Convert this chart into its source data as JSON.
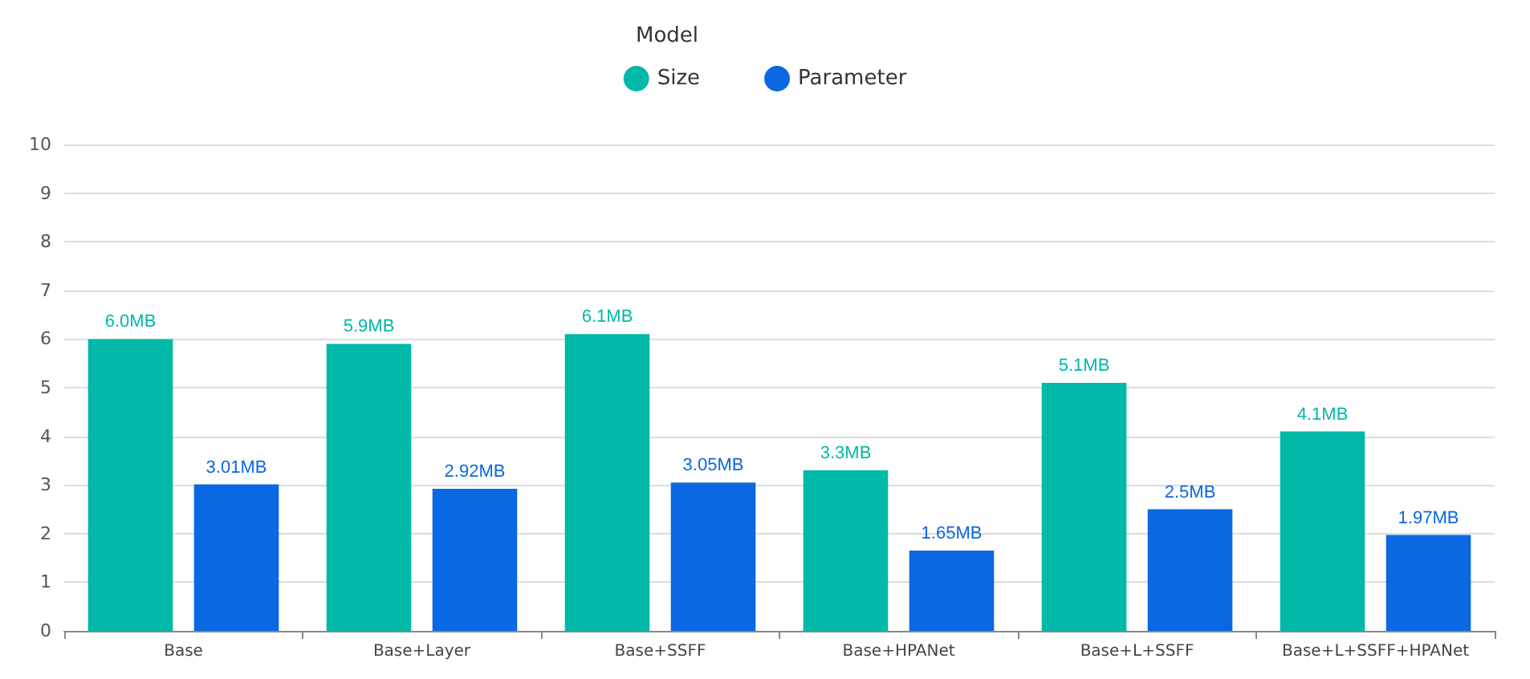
{
  "chart_data": {
    "type": "bar",
    "legend_title": "Model",
    "categories": [
      "Base",
      "Base+Layer",
      "Base+SSFF",
      "Base+HPANet",
      "Base+L+SSFF",
      "Base+L+SSFF+HPANet"
    ],
    "series": [
      {
        "name": "Size",
        "color": "#00b9a8",
        "values": [
          6.0,
          5.9,
          6.1,
          3.3,
          5.1,
          4.1
        ],
        "value_labels": [
          "6.0MB",
          "5.9MB",
          "6.1MB",
          "3.3MB",
          "5.1MB",
          "4.1MB"
        ]
      },
      {
        "name": "Parameter",
        "color": "#0a68e2",
        "values": [
          3.01,
          2.92,
          3.05,
          1.65,
          2.5,
          1.97
        ],
        "value_labels": [
          "3.01MB",
          "2.92MB",
          "3.05MB",
          "1.65MB",
          "2.5MB",
          "1.97MB"
        ]
      }
    ],
    "ylim": [
      0,
      10
    ],
    "yticks": [
      0,
      1,
      2,
      3,
      4,
      5,
      6,
      7,
      8,
      9,
      10
    ],
    "grid": "y",
    "legend": "top"
  }
}
